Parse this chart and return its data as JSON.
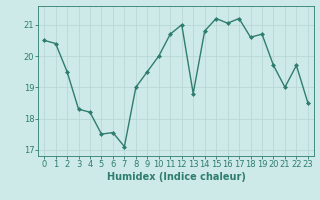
{
  "x": [
    0,
    1,
    2,
    3,
    4,
    5,
    6,
    7,
    8,
    9,
    10,
    11,
    12,
    13,
    14,
    15,
    16,
    17,
    18,
    19,
    20,
    21,
    22,
    23
  ],
  "y": [
    20.5,
    20.4,
    19.5,
    18.3,
    18.2,
    17.5,
    17.55,
    17.1,
    19.0,
    19.5,
    20.0,
    20.7,
    21.0,
    18.8,
    20.8,
    21.2,
    21.05,
    21.2,
    20.6,
    20.7,
    19.7,
    19.0,
    19.7,
    18.5
  ],
  "xlabel": "Humidex (Indice chaleur)",
  "ylim": [
    16.8,
    21.6
  ],
  "xlim": [
    -0.5,
    23.5
  ],
  "yticks": [
    17,
    18,
    19,
    20,
    21
  ],
  "xticks": [
    0,
    1,
    2,
    3,
    4,
    5,
    6,
    7,
    8,
    9,
    10,
    11,
    12,
    13,
    14,
    15,
    16,
    17,
    18,
    19,
    20,
    21,
    22,
    23
  ],
  "line_color": "#2e7d6e",
  "bg_color": "#ceeae8",
  "grid_color": "#b8d8d5",
  "axis_color": "#2e7d6e",
  "marker": "D",
  "marker_size": 2.0,
  "linewidth": 1.0,
  "xlabel_fontsize": 7,
  "tick_fontsize": 6
}
